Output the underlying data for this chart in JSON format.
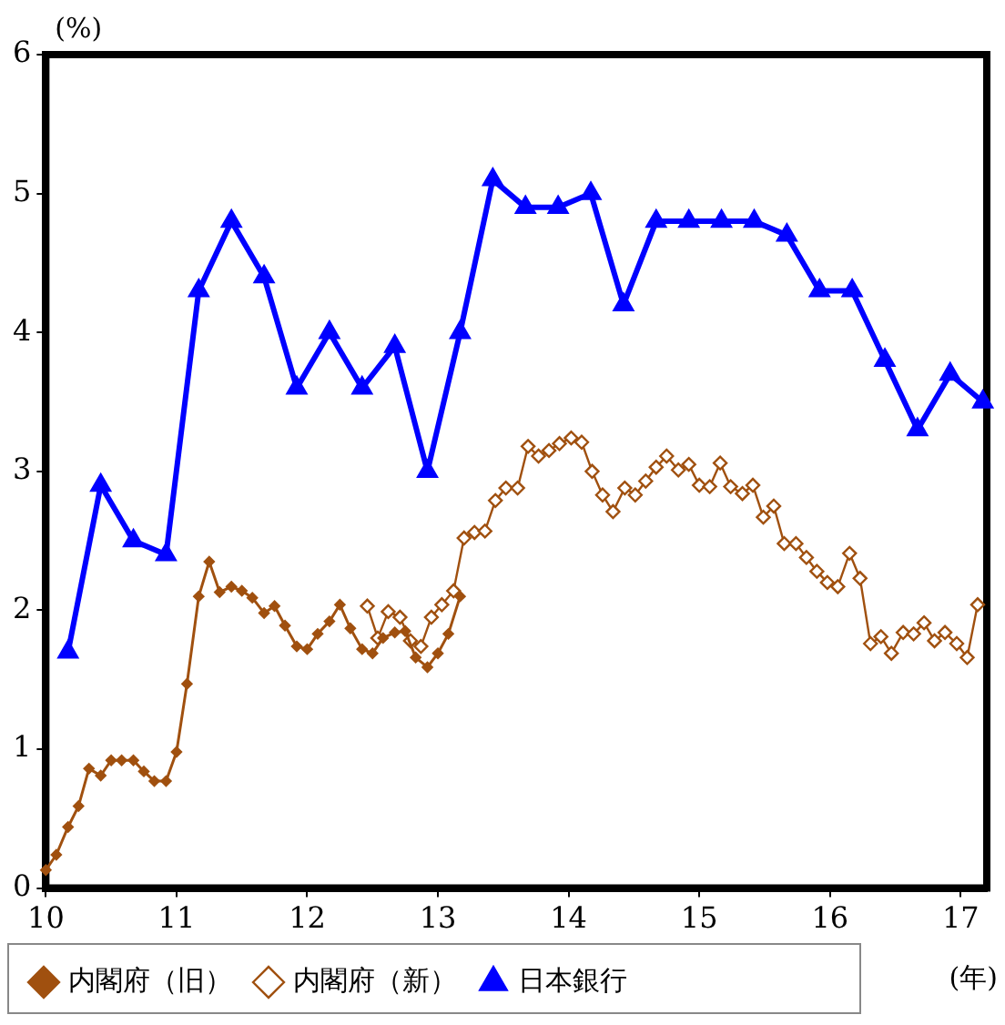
{
  "chart_data": {
    "type": "line",
    "xlabel": "(年)",
    "ylabel": "(%)",
    "xlim": [
      10,
      17.2
    ],
    "xticks": [
      10,
      11,
      12,
      13,
      14,
      15,
      16,
      17
    ],
    "ylim": [
      0,
      6
    ],
    "yticks": [
      0,
      1,
      2,
      3,
      4,
      5,
      6
    ],
    "grid": false,
    "legend": "bottom",
    "line_style": "solid",
    "series": [
      {
        "name": "内閣府（旧）",
        "color": "#a0500f",
        "marker": "diamond",
        "x": [
          10,
          10.08,
          10.17,
          10.25,
          10.33,
          10.42,
          10.5,
          10.58,
          10.67,
          10.75,
          10.83,
          10.92,
          11,
          11.08,
          11.17,
          11.25,
          11.33,
          11.42,
          11.5,
          11.58,
          11.67,
          11.75,
          11.83,
          11.92,
          12,
          12.08,
          12.17,
          12.25,
          12.33,
          12.42,
          12.5,
          12.58,
          12.67,
          12.75,
          12.83,
          12.92,
          13,
          13.08,
          13.17
        ],
        "values": [
          0.13,
          0.24,
          0.44,
          0.59,
          0.86,
          0.81,
          0.92,
          0.92,
          0.92,
          0.84,
          0.77,
          0.77,
          0.98,
          1.47,
          2.1,
          2.35,
          2.13,
          2.17,
          2.14,
          2.09,
          1.98,
          2.03,
          1.89,
          1.74,
          1.72,
          1.83,
          1.92,
          2.04,
          1.87,
          1.72,
          1.69,
          1.8,
          1.84,
          1.85,
          1.66,
          1.59,
          1.69,
          1.83,
          2.1
        ]
      },
      {
        "name": "内閣府（新）",
        "color": "#a0500f",
        "marker": "diamond_open",
        "x": [
          12.46,
          12.54,
          12.62,
          12.71,
          12.79,
          12.87,
          12.95,
          13.03,
          13.12,
          13.2,
          13.28,
          13.36,
          13.44,
          13.52,
          13.61,
          13.69,
          13.77,
          13.85,
          13.93,
          14.02,
          14.1,
          14.18,
          14.26,
          14.34,
          14.43,
          14.51,
          14.59,
          14.67,
          14.75,
          14.84,
          14.92,
          15,
          15.08,
          15.16,
          15.24,
          15.33,
          15.41,
          15.49,
          15.57,
          15.65,
          15.74,
          15.82,
          15.9,
          15.98,
          16.06,
          16.15,
          16.23,
          16.31,
          16.39,
          16.47,
          16.56,
          16.64,
          16.72,
          16.8,
          16.88,
          16.97,
          17.05,
          17.13
        ],
        "values": [
          2.03,
          1.8,
          1.99,
          1.95,
          1.78,
          1.74,
          1.95,
          2.04,
          2.14,
          2.52,
          2.56,
          2.57,
          2.79,
          2.88,
          2.88,
          3.18,
          3.11,
          3.15,
          3.2,
          3.24,
          3.21,
          3.0,
          2.83,
          2.71,
          2.88,
          2.83,
          2.93,
          3.03,
          3.11,
          3.01,
          3.05,
          2.9,
          2.89,
          3.06,
          2.89,
          2.84,
          2.9,
          2.67,
          2.75,
          2.48,
          2.48,
          2.38,
          2.28,
          2.2,
          2.17,
          2.41,
          2.23,
          1.76,
          1.81,
          1.69,
          1.84,
          1.83,
          1.91,
          1.78,
          1.84,
          1.76,
          1.66,
          2.04
        ]
      },
      {
        "name": "日本銀行",
        "color": "#0000ff",
        "marker": "triangle",
        "x": [
          10.17,
          10.42,
          10.67,
          10.92,
          11.17,
          11.42,
          11.67,
          11.92,
          12.17,
          12.42,
          12.67,
          12.92,
          13.17,
          13.42,
          13.67,
          13.92,
          14.17,
          14.42,
          14.67,
          14.92,
          15.17,
          15.42,
          15.67,
          15.92,
          16.17,
          16.42,
          16.67,
          16.92,
          17.17
        ],
        "values": [
          1.7,
          2.9,
          2.5,
          2.4,
          4.3,
          4.8,
          4.4,
          3.6,
          4.0,
          3.6,
          3.9,
          3.0,
          4.0,
          5.1,
          4.9,
          4.9,
          5.0,
          4.2,
          4.8,
          4.8,
          4.8,
          4.8,
          4.7,
          4.3,
          4.3,
          3.8,
          3.3,
          3.7,
          3.5
        ]
      }
    ]
  }
}
